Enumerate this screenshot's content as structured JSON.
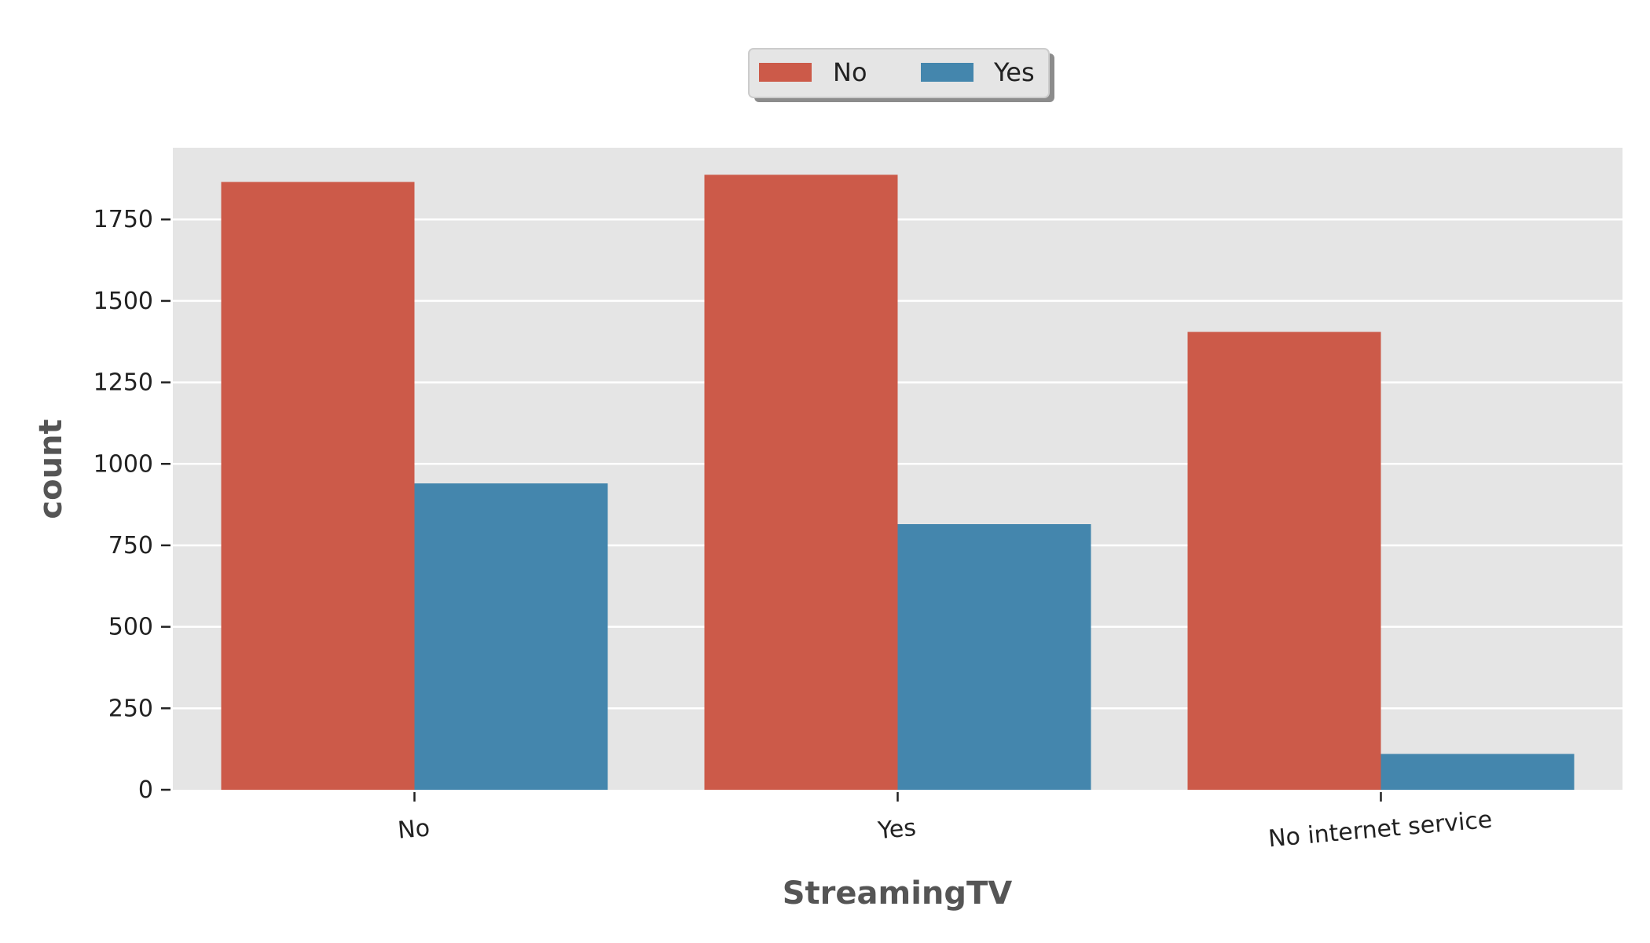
{
  "chart_data": {
    "type": "bar",
    "categories": [
      "No",
      "Yes",
      "No internet service"
    ],
    "series": [
      {
        "name": "No",
        "color": "#cc5a49",
        "values": [
          1865,
          1887,
          1405
        ]
      },
      {
        "name": "Yes",
        "color": "#4486ad",
        "values": [
          940,
          815,
          110
        ]
      }
    ],
    "title": "",
    "xlabel": "StreamingTV",
    "ylabel": "count",
    "ylim": [
      0,
      1970
    ],
    "yticks": [
      0,
      250,
      500,
      750,
      1000,
      1250,
      1500,
      1750
    ],
    "grid": true,
    "legend_position": "top-center",
    "background": "#e5e5e5"
  }
}
